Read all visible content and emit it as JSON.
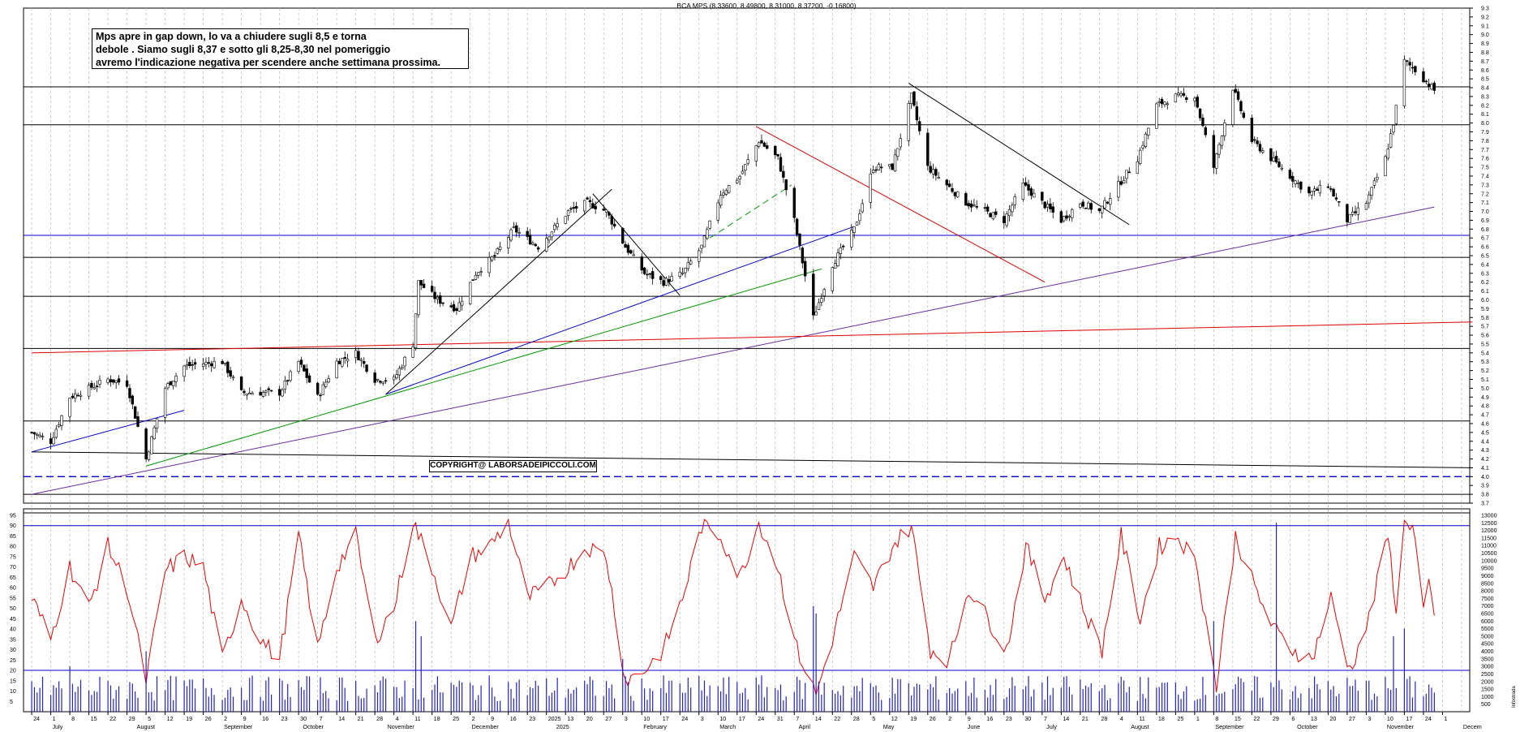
{
  "header": {
    "title": "BCA MPS (8.33600, 8.49800, 8.31000, 8.37200, -0.16800)"
  },
  "annotation": {
    "note_lines": [
      "Mps apre in gap down, lo va a chiudere sugli 8,5 e torna",
      "debole . Siamo sugli 8,37  e sotto gli 8,25-8,30 nel pomeriggio",
      "avremo l'indicazione negativa per scendere anche settimana prossima."
    ],
    "copyright": "COPYRIGHT@ LABORSADEIPICCOLI.COM"
  },
  "chart_data": [
    {
      "type": "candlestick",
      "title": "BCA MPS (8.33600, 8.49800, 8.31000, 8.37200, -0.16800)",
      "last_bar": {
        "open": 8.336,
        "high": 8.498,
        "low": 8.31,
        "close": 8.372,
        "change": -0.168
      },
      "ylim": [
        3.7,
        9.3
      ],
      "y_ticks": [
        "3.7",
        "3.8",
        "3.9",
        "4.0",
        "4.1",
        "4.2",
        "4.3",
        "4.4",
        "4.5",
        "4.6",
        "4.7",
        "4.8",
        "4.9",
        "5.0",
        "5.1",
        "5.2",
        "5.3",
        "5.4",
        "5.5",
        "5.6",
        "5.7",
        "5.8",
        "5.9",
        "6.0",
        "6.1",
        "6.2",
        "6.3",
        "6.4",
        "6.5",
        "6.6",
        "6.7",
        "6.8",
        "6.9",
        "7.0",
        "7.1",
        "7.2",
        "7.3",
        "7.4",
        "7.5",
        "7.6",
        "7.7",
        "7.8",
        "7.9",
        "8.0",
        "8.1",
        "8.2",
        "8.3",
        "8.4",
        "8.5",
        "8.6",
        "8.7",
        "8.8",
        "8.9",
        "9.0",
        "9.1",
        "9.2",
        "9.3"
      ],
      "anchors": [
        {
          "date": "2024-06-24",
          "close": 4.5
        },
        {
          "date": "2024-07-01",
          "close": 4.4
        },
        {
          "date": "2024-07-08",
          "close": 4.9
        },
        {
          "date": "2024-07-15",
          "close": 5.0
        },
        {
          "date": "2024-07-22",
          "close": 5.1
        },
        {
          "date": "2024-07-29",
          "close": 5.05
        },
        {
          "date": "2024-08-05",
          "close": 4.2
        },
        {
          "date": "2024-08-12",
          "close": 5.0
        },
        {
          "date": "2024-08-19",
          "close": 5.25
        },
        {
          "date": "2024-08-26",
          "close": 5.28
        },
        {
          "date": "2024-09-02",
          "close": 5.3
        },
        {
          "date": "2024-09-09",
          "close": 4.95
        },
        {
          "date": "2024-09-16",
          "close": 4.95
        },
        {
          "date": "2024-09-23",
          "close": 4.95
        },
        {
          "date": "2024-09-30",
          "close": 5.3
        },
        {
          "date": "2024-10-07",
          "close": 4.9
        },
        {
          "date": "2024-10-14",
          "close": 5.3
        },
        {
          "date": "2024-10-21",
          "close": 5.4
        },
        {
          "date": "2024-10-28",
          "close": 5.1
        },
        {
          "date": "2024-11-04",
          "close": 5.1
        },
        {
          "date": "2024-11-11",
          "close": 5.5
        },
        {
          "date": "2024-11-13",
          "close": 6.2
        },
        {
          "date": "2024-11-20",
          "close": 6.0
        },
        {
          "date": "2024-11-27",
          "close": 5.9
        },
        {
          "date": "2024-12-04",
          "close": 6.3
        },
        {
          "date": "2024-12-11",
          "close": 6.5
        },
        {
          "date": "2024-12-18",
          "close": 6.8
        },
        {
          "date": "2024-12-27",
          "close": 6.6
        },
        {
          "date": "2025-01-07",
          "close": 7.0
        },
        {
          "date": "2025-01-14",
          "close": 7.1
        },
        {
          "date": "2025-01-21",
          "close": 7.0
        },
        {
          "date": "2025-01-28",
          "close": 6.6
        },
        {
          "date": "2025-02-04",
          "close": 6.3
        },
        {
          "date": "2025-02-11",
          "close": 6.2
        },
        {
          "date": "2025-02-18",
          "close": 6.3
        },
        {
          "date": "2025-02-25",
          "close": 6.6
        },
        {
          "date": "2025-03-04",
          "close": 7.2
        },
        {
          "date": "2025-03-11",
          "close": 7.4
        },
        {
          "date": "2025-03-18",
          "close": 7.8
        },
        {
          "date": "2025-03-25",
          "close": 7.6
        },
        {
          "date": "2025-03-31",
          "close": 6.9
        },
        {
          "date": "2025-04-07",
          "close": 5.8
        },
        {
          "date": "2025-04-14",
          "close": 6.4
        },
        {
          "date": "2025-04-22",
          "close": 6.8
        },
        {
          "date": "2025-04-29",
          "close": 7.5
        },
        {
          "date": "2025-05-06",
          "close": 7.5
        },
        {
          "date": "2025-05-13",
          "close": 8.3
        },
        {
          "date": "2025-05-19",
          "close": 7.5
        },
        {
          "date": "2025-05-26",
          "close": 7.3
        },
        {
          "date": "2025-06-02",
          "close": 7.1
        },
        {
          "date": "2025-06-09",
          "close": 7.0
        },
        {
          "date": "2025-06-16",
          "close": 6.9
        },
        {
          "date": "2025-06-23",
          "close": 7.3
        },
        {
          "date": "2025-06-30",
          "close": 7.1
        },
        {
          "date": "2025-07-07",
          "close": 6.9
        },
        {
          "date": "2025-07-14",
          "close": 7.1
        },
        {
          "date": "2025-07-21",
          "close": 7.0
        },
        {
          "date": "2025-07-28",
          "close": 7.3
        },
        {
          "date": "2025-08-04",
          "close": 7.6
        },
        {
          "date": "2025-08-11",
          "close": 8.2
        },
        {
          "date": "2025-08-18",
          "close": 8.3
        },
        {
          "date": "2025-08-25",
          "close": 8.3
        },
        {
          "date": "2025-09-01",
          "close": 7.5
        },
        {
          "date": "2025-09-08",
          "close": 8.4
        },
        {
          "date": "2025-09-15",
          "close": 7.8
        },
        {
          "date": "2025-09-22",
          "close": 7.6
        },
        {
          "date": "2025-09-29",
          "close": 7.4
        },
        {
          "date": "2025-10-06",
          "close": 7.2
        },
        {
          "date": "2025-10-13",
          "close": 7.3
        },
        {
          "date": "2025-10-20",
          "close": 6.9
        },
        {
          "date": "2025-10-27",
          "close": 7.1
        },
        {
          "date": "2025-11-03",
          "close": 7.6
        },
        {
          "date": "2025-11-06",
          "close": 8.0
        },
        {
          "date": "2025-11-10",
          "close": 8.7
        },
        {
          "date": "2025-11-14",
          "close": 8.6
        },
        {
          "date": "2025-11-21",
          "close": 8.37
        }
      ],
      "horizontal_lines": [
        {
          "y": 8.41,
          "color": "#000000"
        },
        {
          "y": 7.98,
          "color": "#000000"
        },
        {
          "y": 6.73,
          "color": "#0000cc"
        },
        {
          "y": 6.48,
          "color": "#000000"
        },
        {
          "y": 6.04,
          "color": "#000000"
        },
        {
          "y": 5.45,
          "color": "#000000"
        },
        {
          "y": 4.63,
          "color": "#000000"
        },
        {
          "y": 4.0,
          "color": "#0000cc",
          "dashed": true
        },
        {
          "y": 3.8,
          "color": "#000000"
        }
      ],
      "trendlines": [
        {
          "from": [
            "2024-06-24",
            3.8
          ],
          "to": [
            "2025-11-21",
            7.05
          ],
          "color": "#6a2aa0"
        },
        {
          "from": [
            "2024-06-24",
            5.4
          ],
          "to": [
            "2025-12-05",
            5.75
          ],
          "color": "#dd0000"
        },
        {
          "from": [
            "2024-06-24",
            4.28
          ],
          "to": [
            "2025-12-05",
            4.1
          ],
          "color": "#000000"
        },
        {
          "from": [
            "2024-06-24",
            4.28
          ],
          "to": [
            "2024-08-19",
            4.75
          ],
          "color": "#0000cc"
        },
        {
          "from": [
            "2024-08-05",
            4.12
          ],
          "to": [
            "2025-04-10",
            6.35
          ],
          "color": "#009900"
        },
        {
          "from": [
            "2024-11-01",
            4.93
          ],
          "to": [
            "2025-04-22",
            6.83
          ],
          "color": "#0000cc"
        },
        {
          "from": [
            "2024-11-01",
            4.93
          ],
          "to": [
            "2025-01-23",
            7.25
          ],
          "color": "#000000"
        },
        {
          "from": [
            "2025-01-16",
            7.2
          ],
          "to": [
            "2025-02-17",
            6.05
          ],
          "color": "#000000"
        },
        {
          "from": [
            "2025-02-28",
            6.7
          ],
          "to": [
            "2025-03-30",
            7.3
          ],
          "color": "#009900",
          "dashed": true
        },
        {
          "from": [
            "2025-03-17",
            7.96
          ],
          "to": [
            "2025-07-01",
            6.2
          ],
          "color": "#dd0000"
        },
        {
          "from": [
            "2025-05-12",
            8.45
          ],
          "to": [
            "2025-08-01",
            6.85
          ],
          "color": "#000000"
        }
      ]
    },
    {
      "type": "line",
      "name": "oscillator",
      "ylim": [
        0,
        95
      ],
      "y_ticks": [
        "5",
        "10",
        "15",
        "20",
        "25",
        "30",
        "35",
        "40",
        "45",
        "50",
        "55",
        "60",
        "65",
        "70",
        "75",
        "80",
        "85",
        "90",
        "95"
      ],
      "levels": [
        90,
        20
      ],
      "anchors": [
        {
          "date": "2024-06-24",
          "v": 55
        },
        {
          "date": "2024-07-01",
          "v": 35
        },
        {
          "date": "2024-07-08",
          "v": 70
        },
        {
          "date": "2024-07-15",
          "v": 50
        },
        {
          "date": "2024-07-22",
          "v": 80
        },
        {
          "date": "2024-07-29",
          "v": 60
        },
        {
          "date": "2024-08-05",
          "v": 15
        },
        {
          "date": "2024-08-12",
          "v": 68
        },
        {
          "date": "2024-08-19",
          "v": 75
        },
        {
          "date": "2024-08-26",
          "v": 70
        },
        {
          "date": "2024-09-02",
          "v": 25
        },
        {
          "date": "2024-09-09",
          "v": 55
        },
        {
          "date": "2024-09-16",
          "v": 35
        },
        {
          "date": "2024-09-23",
          "v": 25
        },
        {
          "date": "2024-09-30",
          "v": 85
        },
        {
          "date": "2024-10-07",
          "v": 30
        },
        {
          "date": "2024-10-14",
          "v": 70
        },
        {
          "date": "2024-10-21",
          "v": 85
        },
        {
          "date": "2024-10-28",
          "v": 35
        },
        {
          "date": "2024-11-04",
          "v": 50
        },
        {
          "date": "2024-11-11",
          "v": 92
        },
        {
          "date": "2024-11-18",
          "v": 70
        },
        {
          "date": "2024-11-25",
          "v": 40
        },
        {
          "date": "2024-12-02",
          "v": 75
        },
        {
          "date": "2024-12-09",
          "v": 80
        },
        {
          "date": "2024-12-16",
          "v": 92
        },
        {
          "date": "2024-12-23",
          "v": 55
        },
        {
          "date": "2024-12-30",
          "v": 60
        },
        {
          "date": "2025-01-07",
          "v": 70
        },
        {
          "date": "2025-01-14",
          "v": 80
        },
        {
          "date": "2025-01-21",
          "v": 75
        },
        {
          "date": "2025-01-28",
          "v": 15
        },
        {
          "date": "2025-02-04",
          "v": 20
        },
        {
          "date": "2025-02-11",
          "v": 30
        },
        {
          "date": "2025-02-18",
          "v": 55
        },
        {
          "date": "2025-02-25",
          "v": 90
        },
        {
          "date": "2025-03-04",
          "v": 85
        },
        {
          "date": "2025-03-11",
          "v": 65
        },
        {
          "date": "2025-03-18",
          "v": 92
        },
        {
          "date": "2025-03-25",
          "v": 70
        },
        {
          "date": "2025-04-01",
          "v": 30
        },
        {
          "date": "2025-04-08",
          "v": 8
        },
        {
          "date": "2025-04-15",
          "v": 40
        },
        {
          "date": "2025-04-22",
          "v": 75
        },
        {
          "date": "2025-04-29",
          "v": 60
        },
        {
          "date": "2025-05-06",
          "v": 80
        },
        {
          "date": "2025-05-13",
          "v": 90
        },
        {
          "date": "2025-05-20",
          "v": 30
        },
        {
          "date": "2025-05-27",
          "v": 25
        },
        {
          "date": "2025-06-03",
          "v": 60
        },
        {
          "date": "2025-06-10",
          "v": 45
        },
        {
          "date": "2025-06-17",
          "v": 30
        },
        {
          "date": "2025-06-24",
          "v": 80
        },
        {
          "date": "2025-07-01",
          "v": 55
        },
        {
          "date": "2025-07-08",
          "v": 75
        },
        {
          "date": "2025-07-15",
          "v": 50
        },
        {
          "date": "2025-07-22",
          "v": 30
        },
        {
          "date": "2025-07-29",
          "v": 85
        },
        {
          "date": "2025-08-05",
          "v": 45
        },
        {
          "date": "2025-08-12",
          "v": 80
        },
        {
          "date": "2025-08-19",
          "v": 85
        },
        {
          "date": "2025-08-26",
          "v": 70
        },
        {
          "date": "2025-09-02",
          "v": 12
        },
        {
          "date": "2025-09-09",
          "v": 85
        },
        {
          "date": "2025-09-16",
          "v": 60
        },
        {
          "date": "2025-09-23",
          "v": 40
        },
        {
          "date": "2025-09-30",
          "v": 30
        },
        {
          "date": "2025-10-07",
          "v": 25
        },
        {
          "date": "2025-10-14",
          "v": 55
        },
        {
          "date": "2025-10-21",
          "v": 20
        },
        {
          "date": "2025-10-28",
          "v": 45
        },
        {
          "date": "2025-11-04",
          "v": 85
        },
        {
          "date": "2025-11-07",
          "v": 50
        },
        {
          "date": "2025-11-10",
          "v": 90
        },
        {
          "date": "2025-11-13",
          "v": 92
        },
        {
          "date": "2025-11-17",
          "v": 50
        },
        {
          "date": "2025-11-19",
          "v": 60
        },
        {
          "date": "2025-11-21",
          "v": 45
        }
      ]
    },
    {
      "type": "bar",
      "name": "volume",
      "ylim": [
        0,
        13000
      ],
      "y_ticks": [
        "500",
        "1000",
        "1500",
        "2000",
        "2500",
        "3000",
        "3500",
        "4000",
        "4500",
        "5000",
        "5500",
        "6000",
        "6500",
        "7000",
        "7500",
        "8000",
        "8500",
        "9000",
        "9500",
        "10000",
        "10500",
        "11000",
        "11500",
        "12000",
        "12500",
        "13000"
      ],
      "spikes": [
        {
          "date": "2024-07-08",
          "v": 3000
        },
        {
          "date": "2024-08-05",
          "v": 4000
        },
        {
          "date": "2024-11-12",
          "v": 6000
        },
        {
          "date": "2024-11-14",
          "v": 5000
        },
        {
          "date": "2025-01-27",
          "v": 3500
        },
        {
          "date": "2025-04-07",
          "v": 7000
        },
        {
          "date": "2025-04-08",
          "v": 6500
        },
        {
          "date": "2025-09-01",
          "v": 6000
        },
        {
          "date": "2025-09-24",
          "v": 12500
        },
        {
          "date": "2025-11-06",
          "v": 5000
        },
        {
          "date": "2025-11-10",
          "v": 5500
        }
      ]
    }
  ],
  "x_axis": {
    "day_ticks": [
      "24",
      "1",
      "8",
      "15",
      "22",
      "29",
      "5",
      "12",
      "19",
      "26",
      "2",
      "9",
      "16",
      "23",
      "30",
      "7",
      "14",
      "21",
      "28",
      "4",
      "11",
      "18",
      "25",
      "2",
      "9",
      "16",
      "23",
      "2025",
      "13",
      "20",
      "27",
      "3",
      "10",
      "17",
      "24",
      "3",
      "10",
      "17",
      "24",
      "31",
      "7",
      "14",
      "22",
      "28",
      "5",
      "12",
      "19",
      "26",
      "2",
      "9",
      "16",
      "23",
      "30",
      "7",
      "14",
      "21",
      "28",
      "4",
      "11",
      "18",
      "25",
      "1",
      "8",
      "15",
      "22",
      "29",
      "6",
      "13",
      "20",
      "27",
      "3",
      "10",
      "17",
      "24",
      "1"
    ],
    "months": [
      "July",
      "August",
      "September",
      "October",
      "November",
      "December",
      "2025",
      "February",
      "March",
      "April",
      "May",
      "June",
      "July",
      "August",
      "September",
      "October",
      "November",
      "Decem"
    ],
    "right_footer": "Infostrada"
  },
  "colors": {
    "bull": "#ffffff",
    "bear": "#000000",
    "osc": "#ee0000",
    "vol": "#2222cc",
    "level": "#0000cc"
  }
}
